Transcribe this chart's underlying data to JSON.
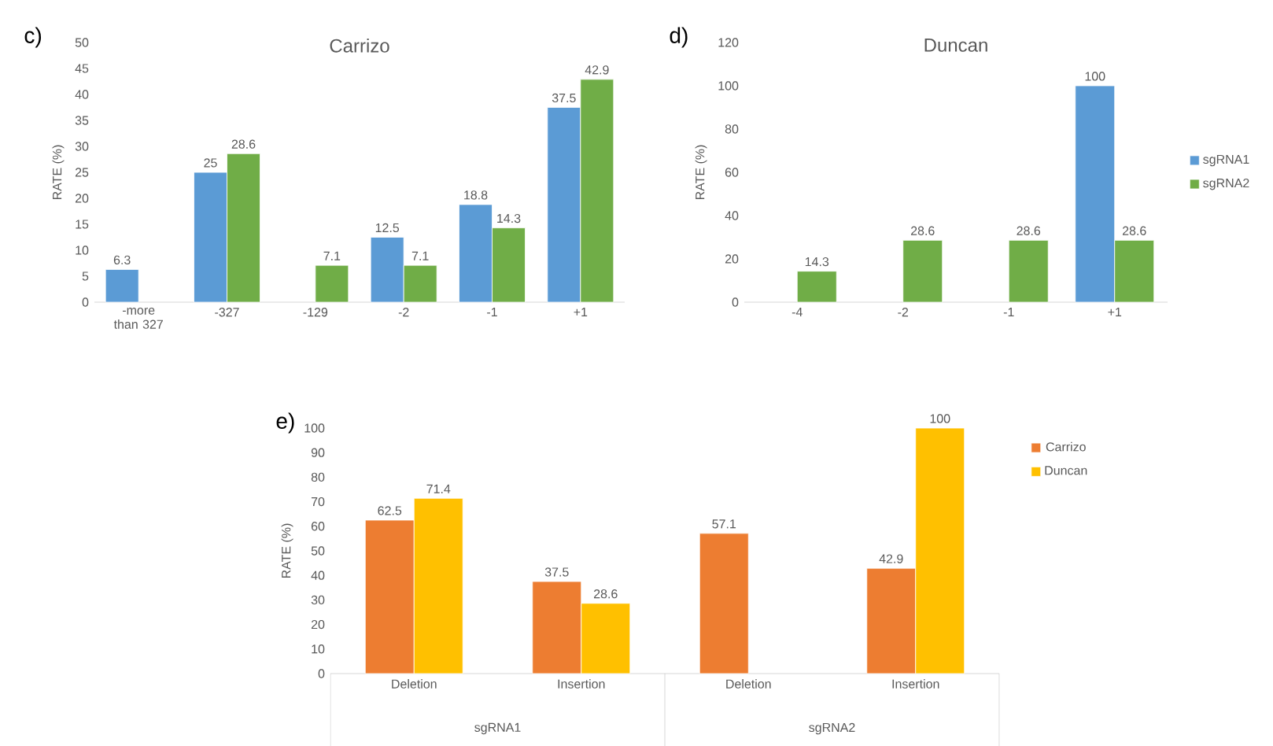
{
  "chart_data": [
    {
      "type": "bar",
      "title": "Carrizo",
      "ylabel": "RATE (%)",
      "annotations": [
        "c)"
      ],
      "categories": [
        "-more than 327",
        "-327",
        "-129",
        "-2",
        "-1",
        "+1"
      ],
      "series": [
        {
          "color": "#5b9bd5",
          "values": [
            6.3,
            25,
            null,
            12.5,
            18.8,
            37.5
          ]
        },
        {
          "color": "#70ad47",
          "values": [
            null,
            28.6,
            7.1,
            7.1,
            14.3,
            42.9
          ]
        }
      ],
      "ylim": [
        0,
        50
      ],
      "yticks": [
        0,
        5,
        10,
        15,
        20,
        25,
        30,
        35,
        40,
        45,
        50
      ],
      "data_labels": true
    },
    {
      "type": "bar",
      "title": "Duncan",
      "ylabel": "RATE (%)",
      "annotations": [
        "d)"
      ],
      "categories": [
        "-4",
        "-2",
        "-1",
        "+1"
      ],
      "series": [
        {
          "name": "sgRNA1",
          "color": "#5b9bd5",
          "values": [
            null,
            null,
            null,
            100
          ]
        },
        {
          "name": "sgRNA2",
          "color": "#70ad47",
          "values": [
            14.3,
            28.6,
            28.6,
            28.6
          ]
        }
      ],
      "ylim": [
        0,
        120
      ],
      "yticks": [
        0,
        20,
        40,
        60,
        80,
        100,
        120
      ],
      "data_labels": true,
      "legend": "right"
    },
    {
      "type": "bar",
      "ylabel": "RATE (%)",
      "annotations": [
        "e)",
        "sgRNA1",
        "sgRNA2"
      ],
      "categories": [
        "Deletion",
        "Insertion",
        "Deletion",
        "Insertion"
      ],
      "series": [
        {
          "name": "Carrizo",
          "color": "#ed7d31",
          "values": [
            62.5,
            37.5,
            57.1,
            42.9
          ]
        },
        {
          "name": "Duncan",
          "color": "#ffc000",
          "values": [
            71.4,
            28.6,
            null,
            100
          ]
        }
      ],
      "ylim": [
        0,
        100
      ],
      "yticks": [
        0,
        10,
        20,
        30,
        40,
        50,
        60,
        70,
        80,
        90,
        100
      ],
      "data_labels": true,
      "legend": "top right"
    }
  ]
}
